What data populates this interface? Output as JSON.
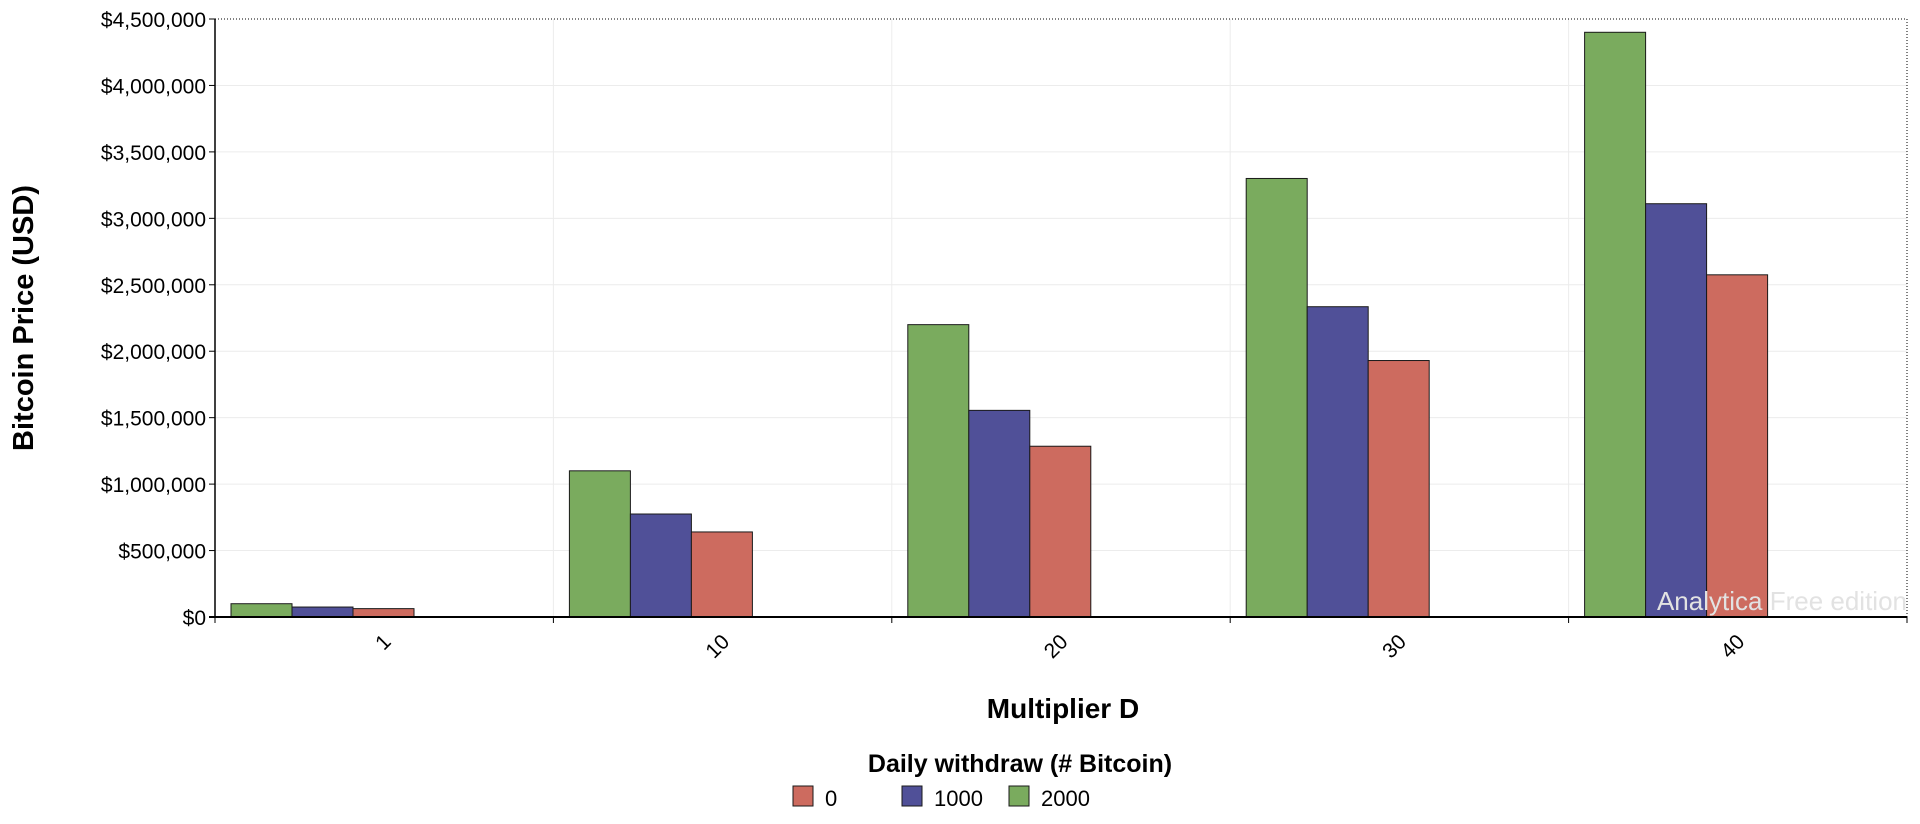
{
  "chart_data": {
    "type": "bar",
    "title": "",
    "xlabel": "Multiplier D",
    "ylabel": "Bitcoin Price (USD)",
    "categories": [
      "1",
      "10",
      "20",
      "30",
      "40"
    ],
    "ylim": [
      0,
      4500000
    ],
    "yticks": [
      0,
      500000,
      1000000,
      1500000,
      2000000,
      2500000,
      3000000,
      3500000,
      4000000,
      4500000
    ],
    "ytick_labels": [
      "$0",
      "$500,000",
      "$1,000,000",
      "$1,500,000",
      "$2,000,000",
      "$2,500,000",
      "$3,000,000",
      "$3,500,000",
      "$4,000,000",
      "$4,500,000"
    ],
    "grid": true,
    "legend_title": "Daily withdraw (# Bitcoin)",
    "legend_placement": "bottom-center",
    "series": [
      {
        "name": "2000",
        "color": "#7aab5e",
        "values": [
          100000,
          1100000,
          2200000,
          3300000,
          4400000
        ]
      },
      {
        "name": "1000",
        "color": "#505098",
        "values": [
          75000,
          775000,
          1555000,
          2335000,
          3110000
        ]
      },
      {
        "name": "0",
        "color": "#cd6b5f",
        "values": [
          63000,
          640000,
          1285000,
          1930000,
          2575000
        ]
      }
    ],
    "legend_order": [
      "0",
      "1000",
      "2000"
    ],
    "watermark": "Analytica Free edition"
  }
}
